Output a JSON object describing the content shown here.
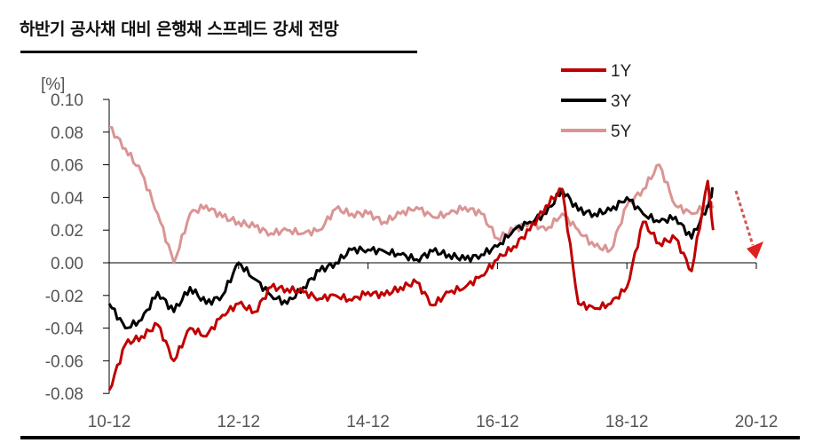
{
  "title": "하반기 공사채 대비 은행채 스프레드 강세 전망",
  "chart_data": {
    "type": "line",
    "title": "하반기 공사채 대비 은행채 스프레드 강세 전망",
    "xlabel": "",
    "ylabel": "[%]",
    "ylim": [
      -0.08,
      0.1
    ],
    "yticks": [
      "0.10",
      "0.08",
      "0.06",
      "0.04",
      "0.02",
      "0.00",
      "-0.02",
      "-0.04",
      "-0.06",
      "-0.08"
    ],
    "xticks": [
      "10-12",
      "12-12",
      "14-12",
      "16-12",
      "18-12",
      "20-12"
    ],
    "grid": false,
    "legend_position": "top-right",
    "annotation": "red dashed downward arrow indicating expected decline after 2020-04",
    "x": [
      "10-12",
      "11-03",
      "11-06",
      "11-09",
      "11-12",
      "12-03",
      "12-06",
      "12-09",
      "12-12",
      "13-03",
      "13-06",
      "13-09",
      "13-12",
      "14-03",
      "14-06",
      "14-09",
      "14-12",
      "15-03",
      "15-06",
      "15-09",
      "15-12",
      "16-03",
      "16-06",
      "16-09",
      "16-12",
      "17-03",
      "17-06",
      "17-09",
      "17-12",
      "18-03",
      "18-06",
      "18-09",
      "18-12",
      "19-03",
      "19-06",
      "19-09",
      "19-12",
      "20-03",
      "20-04"
    ],
    "series": [
      {
        "name": "1Y",
        "color": "#c00000",
        "values": [
          -0.078,
          -0.05,
          -0.045,
          -0.038,
          -0.06,
          -0.04,
          -0.045,
          -0.032,
          -0.025,
          -0.03,
          -0.015,
          -0.016,
          -0.018,
          -0.022,
          -0.02,
          -0.023,
          -0.018,
          -0.02,
          -0.015,
          -0.012,
          -0.026,
          -0.018,
          -0.015,
          -0.008,
          0.002,
          0.01,
          0.02,
          0.035,
          0.045,
          -0.025,
          -0.028,
          -0.025,
          -0.015,
          0.025,
          0.012,
          0.015,
          -0.005,
          0.05,
          0.02
        ]
      },
      {
        "name": "3Y",
        "color": "#000000",
        "values": [
          -0.025,
          -0.04,
          -0.035,
          -0.018,
          -0.03,
          -0.015,
          -0.025,
          -0.02,
          0.0,
          -0.01,
          -0.02,
          -0.025,
          -0.015,
          -0.005,
          0.0,
          0.008,
          0.008,
          0.007,
          0.005,
          0.002,
          0.007,
          0.005,
          0.002,
          0.005,
          0.01,
          0.02,
          0.025,
          0.03,
          0.045,
          0.032,
          0.03,
          0.032,
          0.04,
          0.03,
          0.025,
          0.028,
          0.015,
          0.035,
          0.045
        ]
      },
      {
        "name": "5Y",
        "color": "#d99594",
        "values": [
          0.083,
          0.07,
          0.055,
          0.03,
          0.0,
          0.03,
          0.035,
          0.028,
          0.025,
          0.022,
          0.018,
          0.02,
          0.018,
          0.02,
          0.033,
          0.03,
          0.03,
          0.025,
          0.03,
          0.034,
          0.028,
          0.03,
          0.034,
          0.03,
          0.015,
          0.02,
          0.025,
          0.02,
          0.03,
          0.02,
          0.01,
          0.008,
          0.035,
          0.045,
          0.06,
          0.035,
          0.03,
          0.035,
          0.035
        ]
      }
    ]
  },
  "legend": {
    "items": [
      {
        "label": "1Y",
        "color": "#c00000"
      },
      {
        "label": "3Y",
        "color": "#000000"
      },
      {
        "label": "5Y",
        "color": "#d99594"
      }
    ]
  },
  "axis": {
    "y_unit": "[%]"
  }
}
